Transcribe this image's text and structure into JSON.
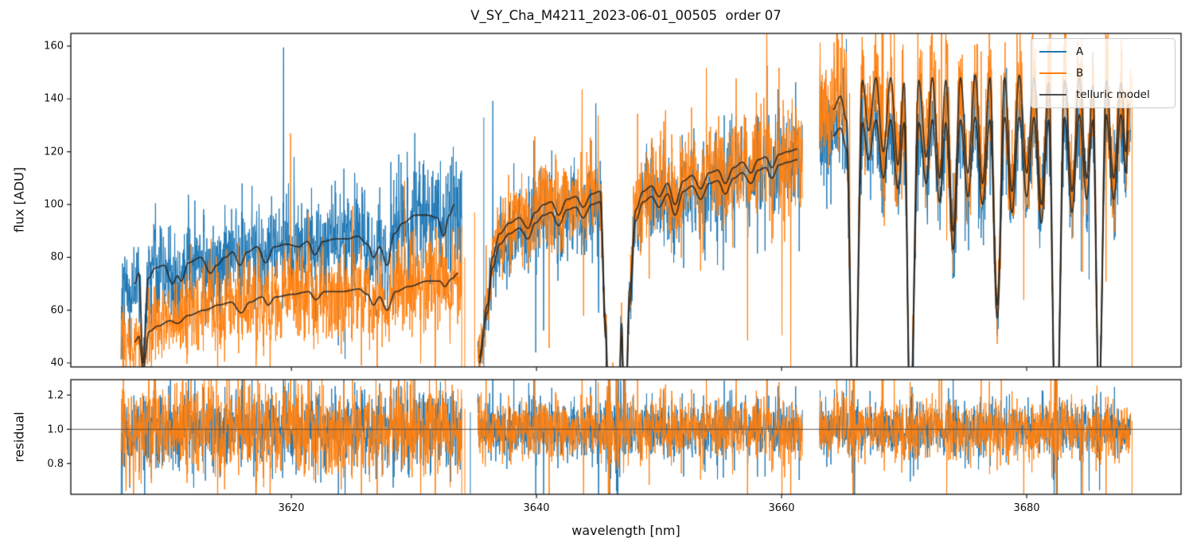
{
  "title": "V_SY_Cha_M4211_2023-06-01_00505  order 07",
  "chart_data": {
    "type": "line",
    "title": "V_SY_Cha_M4211_2023-06-01_00505  order 07",
    "xlabel": "wavelength [nm]",
    "xlim": [
      3602.0,
      3692.6
    ],
    "xticks": [
      3620,
      3640,
      3660,
      3680
    ],
    "xticklabels": [
      "3620",
      "3640",
      "3660",
      "3680"
    ],
    "grid": false,
    "legend_position": "upper right",
    "panels": [
      {
        "name": "flux",
        "ylabel": "flux [ADU]",
        "ylim": [
          38.5,
          164.8
        ],
        "yticks": [
          160,
          140,
          120,
          100,
          80,
          60,
          40
        ],
        "yticklabels": [
          "160",
          "140",
          "120",
          "100",
          "80",
          "60",
          "40"
        ]
      },
      {
        "name": "residual",
        "ylabel": "residual",
        "ylim": [
          0.62,
          1.29
        ],
        "yticks": [
          1.2,
          1.0,
          0.8
        ],
        "yticklabels": [
          "1.2",
          "1.0",
          "0.8"
        ],
        "hline": 1.0
      }
    ],
    "series": [
      {
        "name": "A",
        "color": "#1f77b4"
      },
      {
        "name": "B",
        "color": "#ff7f0e"
      },
      {
        "name": "telluric model",
        "color": "#4d4d4d"
      }
    ],
    "segments": [
      {
        "x_range": [
          3606.1,
          3633.9
        ],
        "noise": {
          "A": {
            "rel": 0.105,
            "add": 3.5
          },
          "B": {
            "rel": 0.13,
            "add": 3.5
          }
        },
        "telluric_A": [
          [
            3607.2,
            70
          ],
          [
            3607.55,
            74
          ],
          [
            3607.9,
            40
          ],
          [
            3608.3,
            72
          ],
          [
            3608.9,
            76
          ],
          [
            3609.6,
            77
          ],
          [
            3610.3,
            70
          ],
          [
            3610.7,
            73
          ],
          [
            3611.0,
            71
          ],
          [
            3611.6,
            78
          ],
          [
            3612.6,
            80
          ],
          [
            3613.4,
            74
          ],
          [
            3613.9,
            77
          ],
          [
            3614.6,
            80
          ],
          [
            3615.2,
            82
          ],
          [
            3615.8,
            77
          ],
          [
            3616.4,
            82
          ],
          [
            3617.2,
            84
          ],
          [
            3617.9,
            78
          ],
          [
            3618.6,
            84
          ],
          [
            3619.6,
            85
          ],
          [
            3620.6,
            84
          ],
          [
            3621.3,
            86
          ],
          [
            3621.9,
            81
          ],
          [
            3622.6,
            86
          ],
          [
            3623.6,
            87
          ],
          [
            3624.6,
            87
          ],
          [
            3625.4,
            88
          ],
          [
            3626.2,
            85
          ],
          [
            3626.7,
            80
          ],
          [
            3627.2,
            84
          ],
          [
            3627.8,
            77
          ],
          [
            3628.4,
            89
          ],
          [
            3629.1,
            93
          ],
          [
            3630.1,
            96
          ],
          [
            3631.1,
            96
          ],
          [
            3631.9,
            95
          ],
          [
            3632.4,
            88
          ],
          [
            3632.9,
            96
          ],
          [
            3633.3,
            100
          ]
        ],
        "telluric_B": [
          [
            3607.2,
            48
          ],
          [
            3607.55,
            50
          ],
          [
            3607.9,
            38
          ],
          [
            3608.4,
            52
          ],
          [
            3609.1,
            54
          ],
          [
            3610.1,
            56
          ],
          [
            3610.7,
            55
          ],
          [
            3611.6,
            58
          ],
          [
            3612.9,
            60
          ],
          [
            3614.1,
            62
          ],
          [
            3615.1,
            63
          ],
          [
            3615.9,
            59
          ],
          [
            3616.6,
            63
          ],
          [
            3617.6,
            65
          ],
          [
            3618.1,
            62
          ],
          [
            3618.7,
            65
          ],
          [
            3620.1,
            66
          ],
          [
            3621.4,
            67
          ],
          [
            3622.0,
            64
          ],
          [
            3622.7,
            67
          ],
          [
            3624.1,
            67
          ],
          [
            3625.5,
            68
          ],
          [
            3626.2,
            66
          ],
          [
            3626.7,
            62
          ],
          [
            3627.2,
            65
          ],
          [
            3627.8,
            60
          ],
          [
            3628.5,
            67
          ],
          [
            3629.6,
            69
          ],
          [
            3631.1,
            71
          ],
          [
            3632.1,
            71
          ],
          [
            3632.5,
            69
          ],
          [
            3633.1,
            72
          ],
          [
            3633.6,
            74
          ]
        ]
      },
      {
        "x_range": [
          3635.2,
          3661.7
        ],
        "noise": {
          "A": {
            "rel": 0.08,
            "add": 3.0
          },
          "B": {
            "rel": 0.085,
            "add": 3.0
          }
        },
        "telluric_A": [
          [
            3635.3,
            40
          ],
          [
            3636.0,
            59
          ],
          [
            3636.4,
            76
          ],
          [
            3637.0,
            85
          ],
          [
            3637.8,
            89
          ],
          [
            3638.6,
            91
          ],
          [
            3639.3,
            87
          ],
          [
            3639.9,
            93
          ],
          [
            3640.6,
            96
          ],
          [
            3641.2,
            97
          ],
          [
            3641.8,
            92
          ],
          [
            3642.5,
            98
          ],
          [
            3643.2,
            99
          ],
          [
            3643.8,
            95
          ],
          [
            3644.5,
            100
          ],
          [
            3645.2,
            101
          ],
          [
            3645.65,
            50
          ],
          [
            3645.9,
            6
          ],
          [
            3646.25,
            34
          ],
          [
            3646.6,
            4
          ],
          [
            3646.95,
            50
          ],
          [
            3647.2,
            6
          ],
          [
            3647.6,
            63
          ],
          [
            3648.1,
            94
          ],
          [
            3648.7,
            101
          ],
          [
            3649.4,
            103
          ],
          [
            3650.0,
            99
          ],
          [
            3650.7,
            104
          ],
          [
            3651.3,
            96
          ],
          [
            3652.0,
            105
          ],
          [
            3652.7,
            107
          ],
          [
            3653.4,
            102
          ],
          [
            3654.1,
            108
          ],
          [
            3654.8,
            109
          ],
          [
            3655.4,
            104
          ],
          [
            3656.1,
            110
          ],
          [
            3656.8,
            112
          ],
          [
            3657.5,
            108
          ],
          [
            3658.1,
            113
          ],
          [
            3658.7,
            114
          ],
          [
            3659.2,
            110
          ],
          [
            3659.8,
            115
          ],
          [
            3660.5,
            116
          ],
          [
            3661.3,
            117
          ]
        ],
        "telluric_B": [
          [
            3635.3,
            42
          ],
          [
            3636.0,
            62
          ],
          [
            3636.4,
            80
          ],
          [
            3637.0,
            89
          ],
          [
            3637.8,
            93
          ],
          [
            3638.6,
            95
          ],
          [
            3639.3,
            91
          ],
          [
            3639.9,
            97
          ],
          [
            3640.6,
            100
          ],
          [
            3641.2,
            101
          ],
          [
            3641.8,
            96
          ],
          [
            3642.5,
            102
          ],
          [
            3643.2,
            103
          ],
          [
            3643.8,
            99
          ],
          [
            3644.5,
            104
          ],
          [
            3645.2,
            105
          ],
          [
            3645.65,
            55
          ],
          [
            3645.9,
            8
          ],
          [
            3646.25,
            38
          ],
          [
            3646.6,
            5
          ],
          [
            3646.95,
            55
          ],
          [
            3647.2,
            8
          ],
          [
            3647.6,
            68
          ],
          [
            3648.1,
            98
          ],
          [
            3648.7,
            105
          ],
          [
            3649.4,
            107
          ],
          [
            3650.0,
            103
          ],
          [
            3650.7,
            108
          ],
          [
            3651.3,
            100
          ],
          [
            3652.0,
            109
          ],
          [
            3652.7,
            111
          ],
          [
            3653.4,
            106
          ],
          [
            3654.1,
            112
          ],
          [
            3654.8,
            113
          ],
          [
            3655.4,
            108
          ],
          [
            3656.1,
            114
          ],
          [
            3656.8,
            116
          ],
          [
            3657.5,
            112
          ],
          [
            3658.1,
            117
          ],
          [
            3658.7,
            118
          ],
          [
            3659.2,
            114
          ],
          [
            3659.8,
            119
          ],
          [
            3660.5,
            120
          ],
          [
            3661.3,
            121
          ]
        ]
      },
      {
        "x_range": [
          3663.1,
          3688.5
        ],
        "noise": {
          "A": {
            "rel": 0.075,
            "add": 3.0
          },
          "B": {
            "rel": 0.085,
            "add": 3.0
          }
        },
        "telluric_A": [
          [
            3664.2,
            126
          ],
          [
            3664.8,
            129
          ],
          [
            3665.3,
            121
          ],
          [
            3665.9,
            2
          ],
          [
            3666.6,
            131
          ],
          [
            3667.1,
            117
          ],
          [
            3667.7,
            132
          ],
          [
            3668.3,
            110
          ],
          [
            3668.9,
            132
          ],
          [
            3669.5,
            106
          ],
          [
            3670.0,
            131
          ],
          [
            3670.5,
            18
          ],
          [
            3671.2,
            131
          ],
          [
            3671.8,
            108
          ],
          [
            3672.3,
            132
          ],
          [
            3672.9,
            101
          ],
          [
            3673.4,
            131
          ],
          [
            3674.0,
            83
          ],
          [
            3674.6,
            132
          ],
          [
            3675.2,
            103
          ],
          [
            3675.8,
            133
          ],
          [
            3676.4,
            100
          ],
          [
            3677.0,
            132
          ],
          [
            3677.6,
            57
          ],
          [
            3678.2,
            133
          ],
          [
            3678.8,
            97
          ],
          [
            3679.4,
            133
          ],
          [
            3680.0,
            103
          ],
          [
            3680.6,
            133
          ],
          [
            3681.2,
            93
          ],
          [
            3681.8,
            132
          ],
          [
            3682.4,
            3
          ],
          [
            3683.1,
            133
          ],
          [
            3683.7,
            97
          ],
          [
            3684.3,
            134
          ],
          [
            3684.9,
            102
          ],
          [
            3685.4,
            132
          ],
          [
            3685.9,
            26
          ],
          [
            3686.5,
            134
          ],
          [
            3687.1,
            102
          ],
          [
            3687.7,
            134
          ],
          [
            3688.1,
            112
          ],
          [
            3688.3,
            128
          ]
        ],
        "telluric_B": [
          [
            3664.2,
            136
          ],
          [
            3664.8,
            141
          ],
          [
            3665.3,
            132
          ],
          [
            3665.9,
            2
          ],
          [
            3666.6,
            147
          ],
          [
            3667.1,
            128
          ],
          [
            3667.7,
            148
          ],
          [
            3668.3,
            120
          ],
          [
            3668.9,
            148
          ],
          [
            3669.5,
            115
          ],
          [
            3670.0,
            146
          ],
          [
            3670.5,
            20
          ],
          [
            3671.2,
            147
          ],
          [
            3671.8,
            118
          ],
          [
            3672.3,
            148
          ],
          [
            3672.9,
            110
          ],
          [
            3673.4,
            147
          ],
          [
            3674.0,
            90
          ],
          [
            3674.6,
            148
          ],
          [
            3675.2,
            112
          ],
          [
            3675.8,
            149
          ],
          [
            3676.4,
            108
          ],
          [
            3677.0,
            148
          ],
          [
            3677.6,
            62
          ],
          [
            3678.2,
            148
          ],
          [
            3678.8,
            105
          ],
          [
            3679.4,
            149
          ],
          [
            3680.0,
            112
          ],
          [
            3680.6,
            148
          ],
          [
            3681.2,
            100
          ],
          [
            3681.8,
            146
          ],
          [
            3682.4,
            3
          ],
          [
            3683.1,
            147
          ],
          [
            3683.7,
            105
          ],
          [
            3684.3,
            148
          ],
          [
            3684.9,
            110
          ],
          [
            3685.4,
            145
          ],
          [
            3685.9,
            28
          ],
          [
            3686.5,
            147
          ],
          [
            3687.1,
            110
          ],
          [
            3687.7,
            146
          ],
          [
            3688.1,
            120
          ],
          [
            3688.3,
            138
          ]
        ]
      }
    ],
    "spikes_flux": [
      {
        "x": 3633.9,
        "series": "B",
        "to": 92
      },
      {
        "x": 3634.15,
        "series": "B",
        "to": 80
      },
      {
        "x": 3634.95,
        "series": "B",
        "to": 97
      },
      {
        "x": 3635.7,
        "series": "A",
        "to": 133
      },
      {
        "x": 3688.6,
        "series": "B",
        "to": 148
      }
    ],
    "spikes_residual": [
      {
        "x": 3633.9,
        "series": "B",
        "hi": 1.18
      },
      {
        "x": 3634.15,
        "series": "B",
        "hi": 1.12
      },
      {
        "x": 3634.6,
        "series": "A",
        "hi": 1.1
      },
      {
        "x": 3688.6,
        "series": "B",
        "hi": 1.05
      }
    ]
  }
}
